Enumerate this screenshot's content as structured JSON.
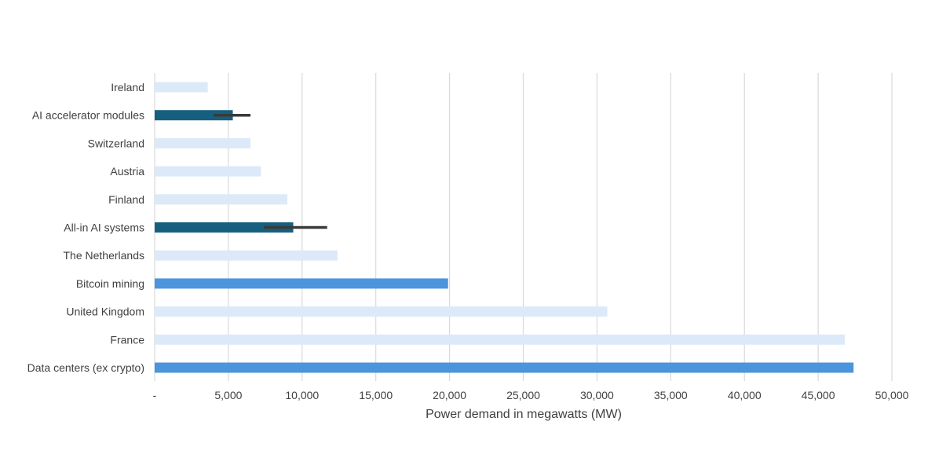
{
  "chart_data": {
    "type": "bar",
    "orientation": "horizontal",
    "title": "",
    "xlabel": "Power demand in megawatts (MW)",
    "ylabel": "",
    "xlim": [
      0,
      50000
    ],
    "x_ticks": [
      0,
      5000,
      10000,
      15000,
      20000,
      25000,
      30000,
      35000,
      40000,
      45000,
      50000
    ],
    "x_tick_labels": [
      "-",
      "5,000",
      "10,000",
      "15,000",
      "20,000",
      "25,000",
      "30,000",
      "35,000",
      "40,000",
      "45,000",
      "50,000"
    ],
    "grid": "vertical",
    "legend": "none",
    "categories": [
      "Ireland",
      "AI accelerator modules",
      "Switzerland",
      "Austria",
      "Finland",
      "All-in AI systems",
      "The Netherlands",
      "Bitcoin mining",
      "United Kingdom",
      "France",
      "Data centers (ex crypto)"
    ],
    "values": [
      3600,
      5300,
      6500,
      7200,
      9000,
      9400,
      12400,
      19900,
      30700,
      46800,
      47400
    ],
    "error_bars": [
      null,
      [
        4000,
        6500
      ],
      null,
      null,
      null,
      [
        7400,
        11700
      ],
      null,
      null,
      null,
      null,
      null
    ],
    "bar_colors": [
      "#dce9f8",
      "#175f7f",
      "#dce9f8",
      "#dce9f8",
      "#dce9f8",
      "#175f7f",
      "#dce9f8",
      "#4b95dc",
      "#dce9f8",
      "#dce9f8",
      "#4b95dc"
    ],
    "colors": {
      "country": "#dce9f8",
      "ai": "#175f7f",
      "digital": "#4b95dc",
      "error_bar": "#3a3a3a",
      "grid": "#d9d9d9",
      "text": "#404040"
    }
  }
}
